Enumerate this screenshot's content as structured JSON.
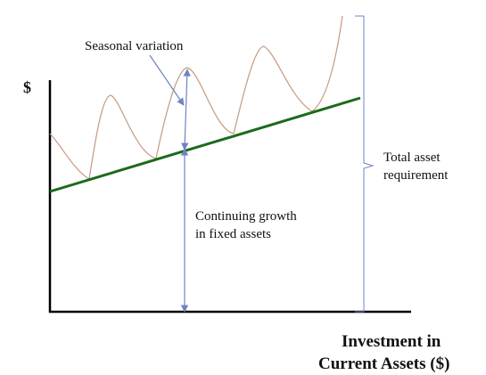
{
  "diagram": {
    "y_axis_label": "$",
    "x_axis_label_line1": "Investment in",
    "x_axis_label_line2": "Current Assets ($)",
    "seasonal_label": "Seasonal variation",
    "growth_label_line1": "Continuing growth",
    "growth_label_line2": "in fixed assets",
    "total_label_line1": "Total asset",
    "total_label_line2": "requirement",
    "colors": {
      "axes": "#000000",
      "trend_line": "#1a6b1a",
      "seasonal_curve": "#c49a80",
      "arrows": "#6f83c4",
      "brace": "#6f83c4",
      "text": "#111111"
    }
  }
}
